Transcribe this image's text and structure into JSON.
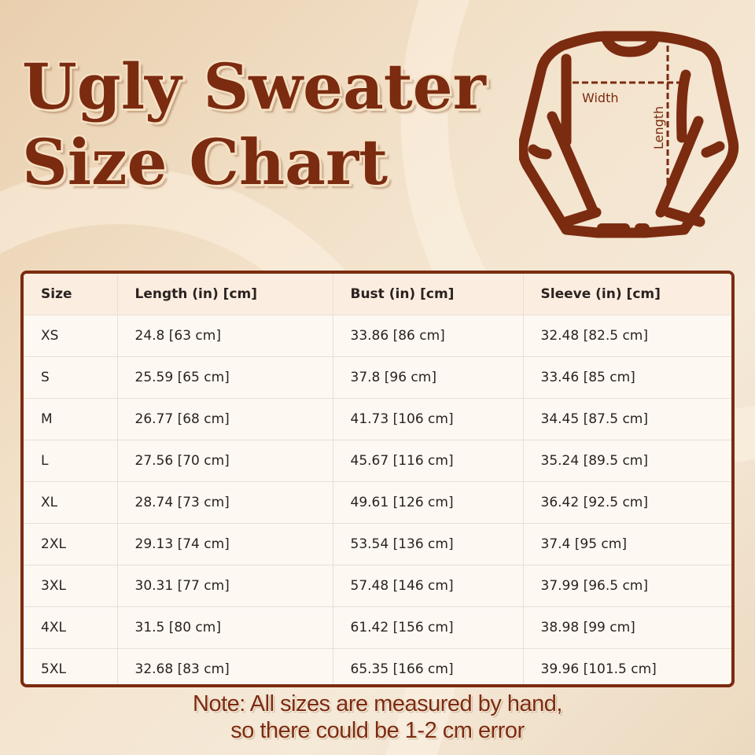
{
  "title": {
    "line1": "Ugly Sweater",
    "line2": "Size Chart"
  },
  "diagram": {
    "width_label": "Width",
    "length_label": "Length",
    "icon": "sweater-icon"
  },
  "table": {
    "headers": [
      "Size",
      "Length (in) [cm]",
      "Bust (in) [cm]",
      "Sleeve (in) [cm]"
    ],
    "rows": [
      [
        "XS",
        "24.8 [63 cm]",
        "33.86 [86 cm]",
        "32.48 [82.5 cm]"
      ],
      [
        "S",
        "25.59 [65 cm]",
        "37.8 [96 cm]",
        "33.46 [85 cm]"
      ],
      [
        "M",
        "26.77 [68 cm]",
        "41.73 [106 cm]",
        "34.45 [87.5 cm]"
      ],
      [
        "L",
        "27.56 [70 cm]",
        "45.67 [116 cm]",
        "35.24 [89.5 cm]"
      ],
      [
        "XL",
        "28.74 [73 cm]",
        "49.61 [126 cm]",
        "36.42 [92.5 cm]"
      ],
      [
        "2XL",
        "29.13 [74 cm]",
        "53.54 [136 cm]",
        "37.4 [95 cm]"
      ],
      [
        "3XL",
        "30.31 [77 cm]",
        "57.48 [146 cm]",
        "37.99 [96.5 cm]"
      ],
      [
        "4XL",
        "31.5 [80 cm]",
        "61.42 [156 cm]",
        "38.98 [99 cm]"
      ],
      [
        "5XL",
        "32.68 [83 cm]",
        "65.35 [166 cm]",
        "39.96 [101.5 cm]"
      ]
    ]
  },
  "note": {
    "line1": "Note: All sizes are measured by hand,",
    "line2": "so there could be 1-2 cm error"
  },
  "colors": {
    "accent": "#7b2b10",
    "background": "#f3e3cc"
  }
}
